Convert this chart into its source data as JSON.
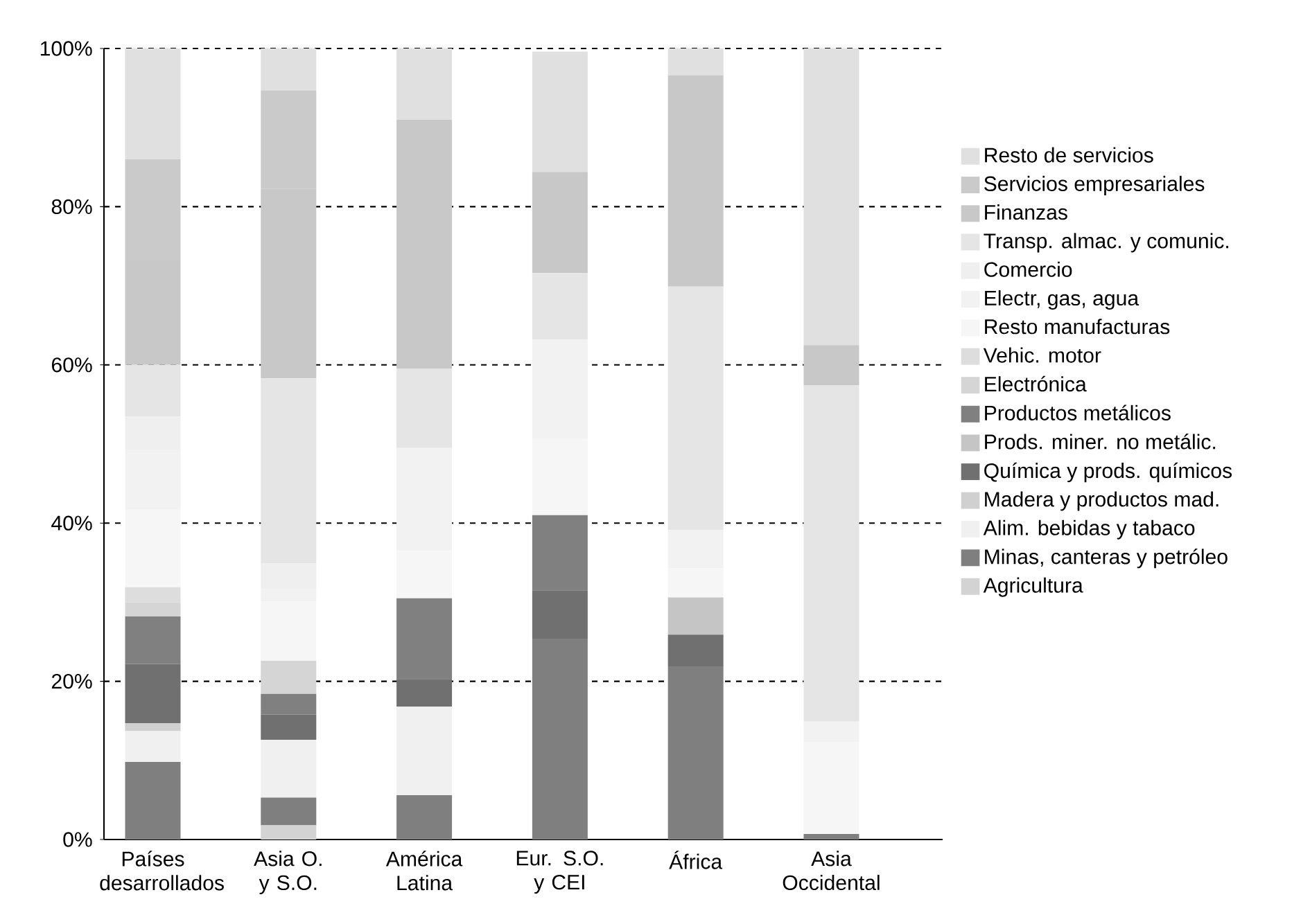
{
  "chart_data": {
    "type": "bar",
    "stacked": true,
    "categories": [
      "Países desarrollados",
      "Asia O. y S.O.",
      "América Latina",
      "Eur. S.O. y CEI",
      "África",
      "Asia Occidental"
    ],
    "series": [
      {
        "name": "Agricultura",
        "color": "#d3d3d3",
        "values": [
          0,
          1.8,
          0,
          0,
          0,
          0
        ]
      },
      {
        "name": "Minas, canteras y petróleo",
        "color": "#7f7f7f",
        "values": [
          9.8,
          3.5,
          5.6,
          25.4,
          21.9,
          0.7
        ]
      },
      {
        "name": "Alim. bebidas y tabaco",
        "color": "#f0f0f0",
        "values": [
          3.9,
          7.3,
          11.2,
          0,
          0,
          0
        ]
      },
      {
        "name": "Madera y productos mad.",
        "color": "#d0d0d0",
        "values": [
          1.0,
          0,
          0,
          0,
          0,
          0
        ]
      },
      {
        "name": "Química y prods. químicos",
        "color": "#707070",
        "values": [
          7.5,
          3.2,
          3.5,
          6.1,
          4.0,
          0
        ]
      },
      {
        "name": "Prods. miner. no metálic.",
        "color": "#c5c5c5",
        "values": [
          0,
          0,
          0,
          0,
          4.7,
          0
        ]
      },
      {
        "name": "Productos metálicos",
        "color": "#808080",
        "values": [
          6.0,
          2.6,
          10.2,
          9.5,
          0,
          0
        ]
      },
      {
        "name": "Electrónica",
        "color": "#d5d5d5",
        "values": [
          1.8,
          4.2,
          0,
          0,
          0,
          0
        ]
      },
      {
        "name": "Vehic. motor",
        "color": "#dddddd",
        "values": [
          1.9,
          0,
          0,
          0,
          0,
          0
        ]
      },
      {
        "name": "Resto manufacturas",
        "color": "#f6f6f6",
        "values": [
          9.8,
          7.5,
          6.0,
          9.6,
          3.7,
          11.6
        ]
      },
      {
        "name": "Electr, gas, agua",
        "color": "#f2f2f2",
        "values": [
          7.6,
          1.6,
          13.0,
          12.6,
          4.8,
          2.6
        ]
      },
      {
        "name": "Comercio",
        "color": "#efefef",
        "values": [
          4.2,
          3.2,
          0,
          0,
          0,
          0
        ]
      },
      {
        "name": "Transp. almac. y comunic.",
        "color": "#e5e5e5",
        "values": [
          6.5,
          23.4,
          10.0,
          8.4,
          30.8,
          42.5
        ]
      },
      {
        "name": "Finanzas",
        "color": "#c8c8c8",
        "values": [
          13.2,
          24.0,
          31.5,
          12.8,
          26.7,
          5.1
        ]
      },
      {
        "name": "Servicios empresariales",
        "color": "#cacaca",
        "values": [
          12.8,
          12.4,
          0,
          0,
          0,
          0
        ]
      },
      {
        "name": "Resto de servicios",
        "color": "#e0e0e0",
        "values": [
          14.0,
          5.3,
          9.0,
          15.2,
          3.4,
          37.5
        ]
      }
    ],
    "ylim": [
      0,
      100
    ],
    "yticks": [
      {
        "value": 0,
        "label": "0%"
      },
      {
        "value": 20,
        "label": "20%"
      },
      {
        "value": 40,
        "label": "40%"
      },
      {
        "value": 60,
        "label": "60%"
      },
      {
        "value": 80,
        "label": "80%"
      },
      {
        "value": 100,
        "label": "100%"
      }
    ],
    "grid": "y",
    "legend": "right"
  }
}
